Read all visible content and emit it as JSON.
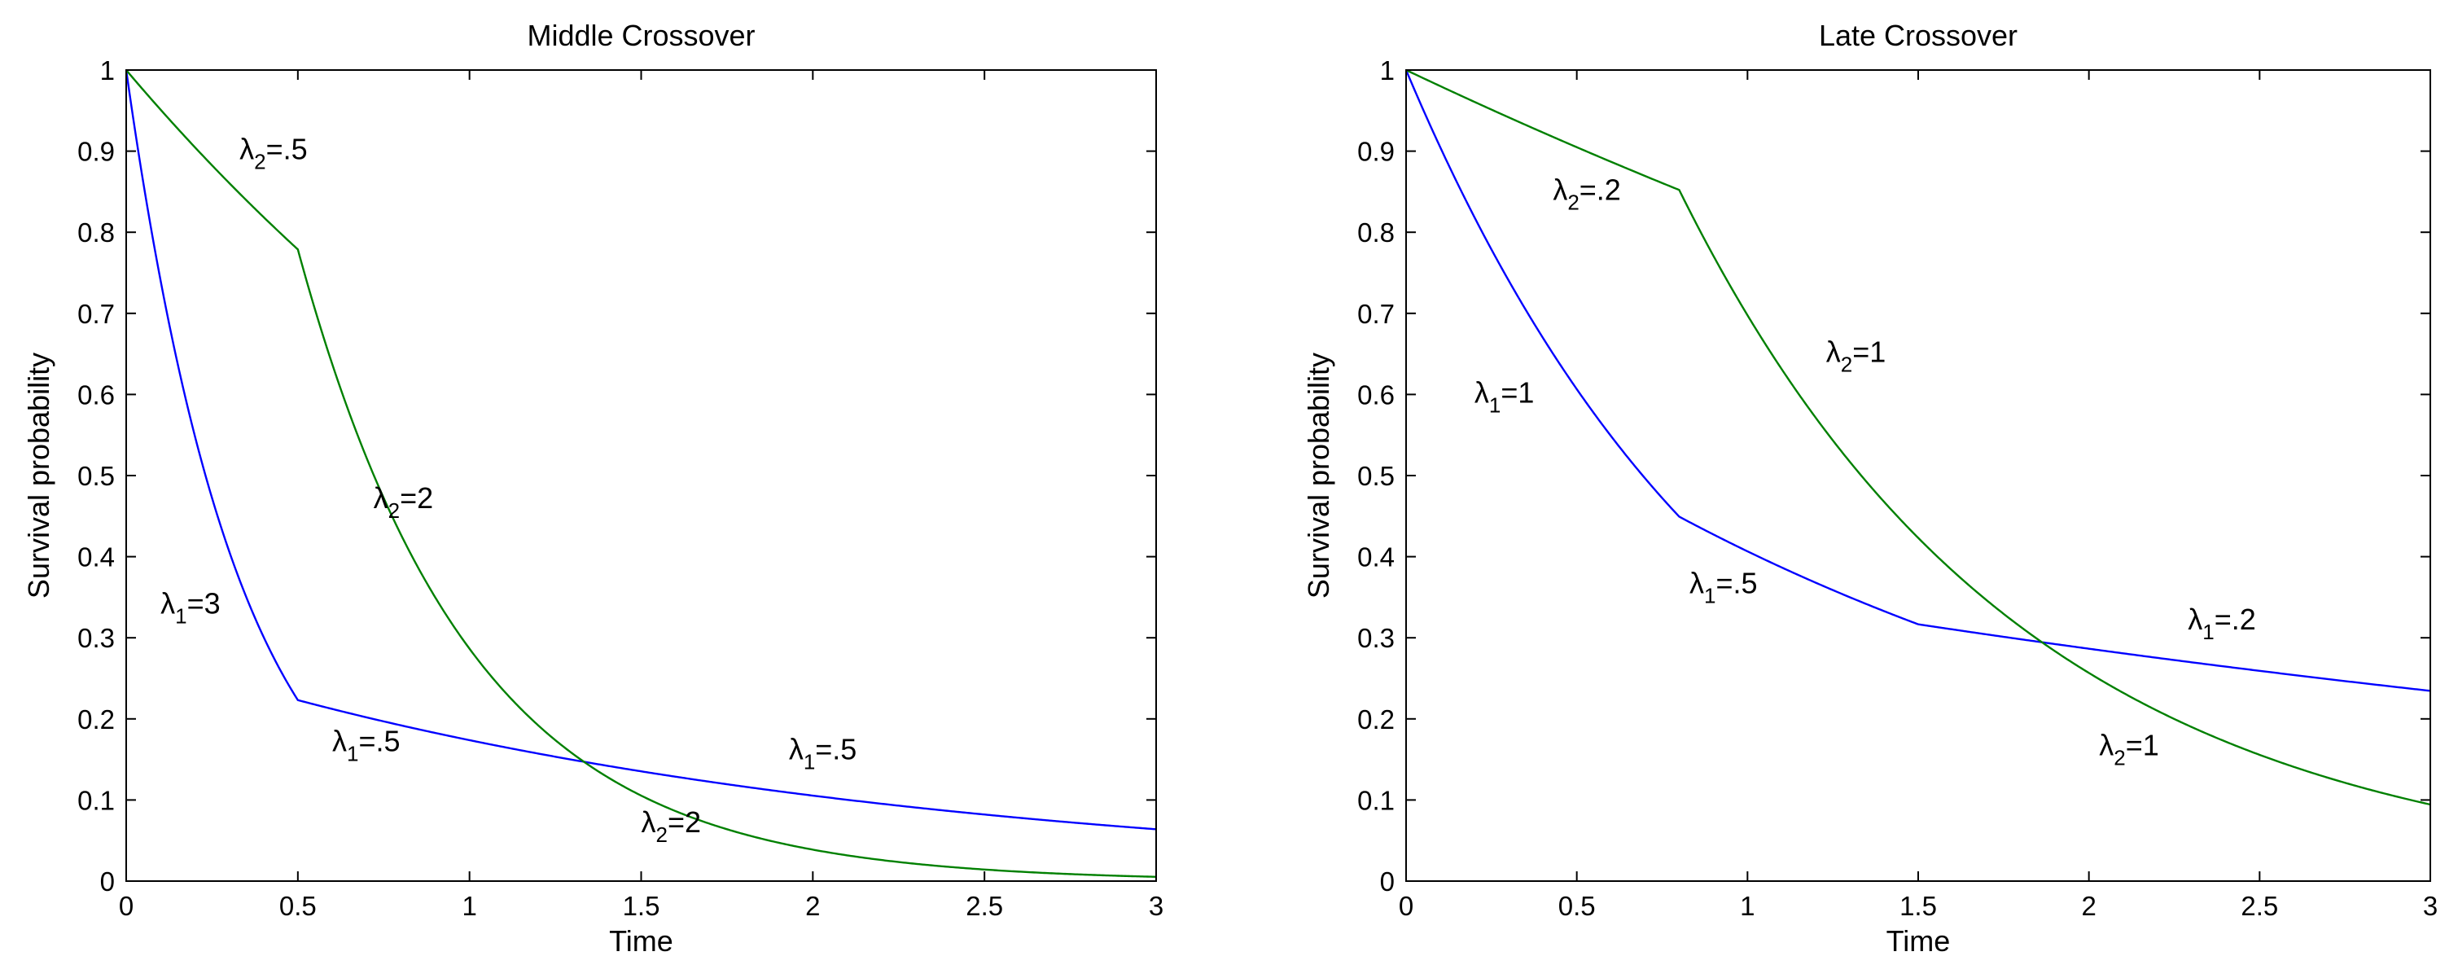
{
  "chart_data": [
    {
      "type": "line",
      "title": "Middle Crossover",
      "xlabel": "Time",
      "ylabel": "Survival probability",
      "xlim": [
        0,
        3
      ],
      "ylim": [
        0,
        1
      ],
      "xticks": [
        0,
        0.5,
        1,
        1.5,
        2,
        2.5,
        3
      ],
      "xtick_labels": [
        "0",
        "0.5",
        "1",
        "1.5",
        "2",
        "2.5",
        "3"
      ],
      "yticks": [
        0,
        0.1,
        0.2,
        0.3,
        0.4,
        0.5,
        0.6,
        0.7,
        0.8,
        0.9,
        1
      ],
      "ytick_labels": [
        "0",
        "0.1",
        "0.2",
        "0.3",
        "0.4",
        "0.5",
        "0.6",
        "0.7",
        "0.8",
        "0.9",
        "1"
      ],
      "grid": false,
      "series": [
        {
          "color": "#0000ff",
          "breakpoint": 0.5,
          "rate_before": 3,
          "rate_after": 0.5
        },
        {
          "color": "#008000",
          "breakpoint": 0.5,
          "rate_before": 0.5,
          "rate_after": 2
        }
      ],
      "annotations": [
        {
          "base": "λ",
          "sub": "2",
          "rest": "=.5",
          "x": 0.33,
          "y": 0.89
        },
        {
          "base": "λ",
          "sub": "2",
          "rest": "=2",
          "x": 0.72,
          "y": 0.46
        },
        {
          "base": "λ",
          "sub": "1",
          "rest": "=3",
          "x": 0.1,
          "y": 0.33
        },
        {
          "base": "λ",
          "sub": "1",
          "rest": "=.5",
          "x": 0.6,
          "y": 0.16
        },
        {
          "base": "λ",
          "sub": "1",
          "rest": "=.5",
          "x": 1.93,
          "y": 0.15
        },
        {
          "base": "λ",
          "sub": "2",
          "rest": "=2",
          "x": 1.5,
          "y": 0.06
        }
      ]
    },
    {
      "type": "line",
      "title": "Late Crossover",
      "xlabel": "Time",
      "ylabel": "Survival probability",
      "xlim": [
        0,
        3
      ],
      "ylim": [
        0,
        1
      ],
      "xticks": [
        0,
        0.5,
        1,
        1.5,
        2,
        2.5,
        3
      ],
      "xtick_labels": [
        "0",
        "0.5",
        "1",
        "1.5",
        "2",
        "2.5",
        "3"
      ],
      "yticks": [
        0,
        0.1,
        0.2,
        0.3,
        0.4,
        0.5,
        0.6,
        0.7,
        0.8,
        0.9,
        1
      ],
      "ytick_labels": [
        "0",
        "0.1",
        "0.2",
        "0.3",
        "0.4",
        "0.5",
        "0.6",
        "0.7",
        "0.8",
        "0.9",
        "1"
      ],
      "grid": false,
      "series": [
        {
          "color": "#0000ff",
          "breakpoints": [
            0.8,
            1.5
          ],
          "rates": [
            1,
            0.5,
            0.2
          ]
        },
        {
          "color": "#008000",
          "breakpoints": [
            0.8
          ],
          "rates": [
            0.2,
            1
          ]
        }
      ],
      "annotations": [
        {
          "base": "λ",
          "sub": "2",
          "rest": "=.2",
          "x": 0.43,
          "y": 0.84
        },
        {
          "base": "λ",
          "sub": "2",
          "rest": "=1",
          "x": 1.23,
          "y": 0.64
        },
        {
          "base": "λ",
          "sub": "1",
          "rest": "=1",
          "x": 0.2,
          "y": 0.59
        },
        {
          "base": "λ",
          "sub": "1",
          "rest": "=.5",
          "x": 0.83,
          "y": 0.355
        },
        {
          "base": "λ",
          "sub": "1",
          "rest": "=.2",
          "x": 2.29,
          "y": 0.31
        },
        {
          "base": "λ",
          "sub": "2",
          "rest": "=1",
          "x": 2.03,
          "y": 0.155
        }
      ]
    }
  ]
}
